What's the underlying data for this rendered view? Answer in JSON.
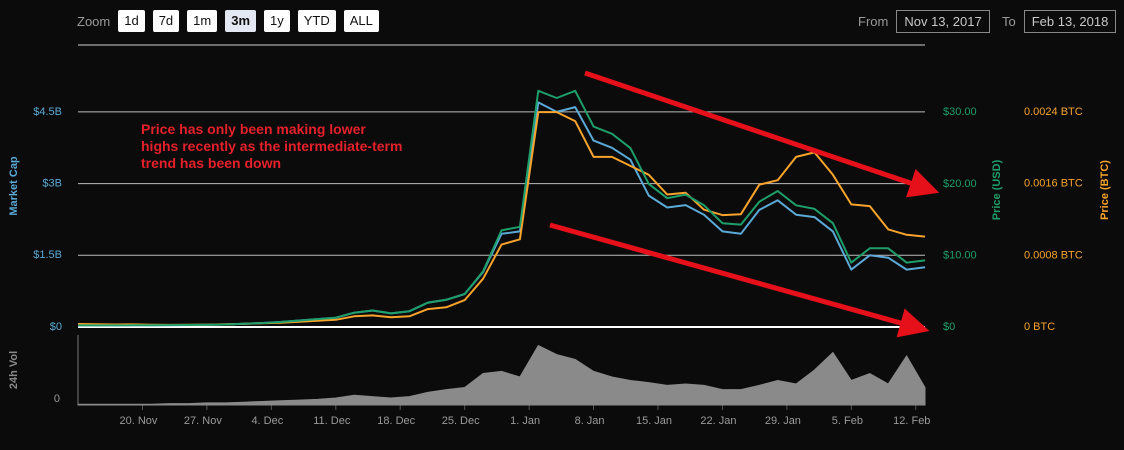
{
  "controls": {
    "zoom_label": "Zoom",
    "zoom_options": [
      "1d",
      "7d",
      "1m",
      "3m",
      "1y",
      "YTD",
      "ALL"
    ],
    "zoom_selected": 3,
    "from_label": "From",
    "from": "Nov 13, 2017",
    "to_label": "To",
    "to": "Feb 13, 2018"
  },
  "chart_data": {
    "type": "line",
    "annotation": "Price has only been making lower highs recently as the intermediate-term trend has been down",
    "x": [
      "2017-11-13",
      "2017-11-15",
      "2017-11-17",
      "2017-11-19",
      "2017-11-21",
      "2017-11-23",
      "2017-11-25",
      "2017-11-27",
      "2017-11-29",
      "2017-12-01",
      "2017-12-03",
      "2017-12-05",
      "2017-12-07",
      "2017-12-09",
      "2017-12-11",
      "2017-12-13",
      "2017-12-15",
      "2017-12-17",
      "2017-12-19",
      "2017-12-21",
      "2017-12-23",
      "2017-12-25",
      "2017-12-27",
      "2017-12-29",
      "2017-12-31",
      "2018-01-02",
      "2018-01-04",
      "2018-01-06",
      "2018-01-08",
      "2018-01-10",
      "2018-01-12",
      "2018-01-14",
      "2018-01-16",
      "2018-01-18",
      "2018-01-20",
      "2018-01-22",
      "2018-01-24",
      "2018-01-26",
      "2018-01-28",
      "2018-01-30",
      "2018-02-01",
      "2018-02-03",
      "2018-02-05",
      "2018-02-07",
      "2018-02-09",
      "2018-02-11",
      "2018-02-13"
    ],
    "xlim": [
      "2017-11-13",
      "2018-02-13"
    ],
    "xticks": [
      {
        "value": "2017-11-20",
        "label": "20. Nov"
      },
      {
        "value": "2017-11-27",
        "label": "27. Nov"
      },
      {
        "value": "2017-12-04",
        "label": "4. Dec"
      },
      {
        "value": "2017-12-11",
        "label": "11. Dec"
      },
      {
        "value": "2017-12-18",
        "label": "18. Dec"
      },
      {
        "value": "2017-12-25",
        "label": "25. Dec"
      },
      {
        "value": "2018-01-01",
        "label": "1. Jan"
      },
      {
        "value": "2018-01-08",
        "label": "8. Jan"
      },
      {
        "value": "2018-01-15",
        "label": "15. Jan"
      },
      {
        "value": "2018-01-22",
        "label": "22. Jan"
      },
      {
        "value": "2018-01-29",
        "label": "29. Jan"
      },
      {
        "value": "2018-02-05",
        "label": "5. Feb"
      },
      {
        "value": "2018-02-12",
        "label": "12. Feb"
      }
    ],
    "ylim": [
      0,
      5900000000
    ],
    "yticks": [
      {
        "value": 0,
        "label": "$0"
      },
      {
        "value": 1500000000,
        "label": "$1.5B"
      },
      {
        "value": 3000000000,
        "label": "$3B"
      },
      {
        "value": 4500000000,
        "label": "$4.5B"
      }
    ],
    "y2lim": [
      0,
      39.4
    ],
    "y2ticks": [
      {
        "value": 0,
        "label": "$0"
      },
      {
        "value": 10,
        "label": "$10.00"
      },
      {
        "value": 20,
        "label": "$20.00"
      },
      {
        "value": 30,
        "label": "$30.00"
      }
    ],
    "y3lim": [
      0,
      0.00315
    ],
    "y3ticks": [
      {
        "value": 0,
        "label": "0 BTC"
      },
      {
        "value": 0.0008,
        "label": "0.0008 BTC"
      },
      {
        "value": 0.0016,
        "label": "0.0016 BTC"
      },
      {
        "value": 0.0024,
        "label": "0.0024 BTC"
      }
    ],
    "vol_ylim": [
      0,
      100
    ],
    "vol_yticks": [
      0
    ],
    "grid": true,
    "series": [
      {
        "name": "Market Cap",
        "color": "#5aa9d6",
        "axis": "y",
        "values": [
          33000000,
          33000000,
          35000000,
          36000000,
          38000000,
          39000000,
          42000000,
          45000000,
          53000000,
          68000000,
          83000000,
          105000000,
          135000000,
          165000000,
          195000000,
          300000000,
          345000000,
          285000000,
          330000000,
          510000000,
          570000000,
          690000000,
          1150000000,
          1950000000,
          2000000000,
          4700000000,
          4500000000,
          4600000000,
          3900000000,
          3750000000,
          3500000000,
          2750000000,
          2500000000,
          2550000000,
          2350000000,
          2000000000,
          1950000000,
          2450000000,
          2650000000,
          2350000000,
          2300000000,
          2000000000,
          1200000000,
          1500000000,
          1450000000,
          1200000000,
          1250000000
        ]
      },
      {
        "name": "Price (BTC)",
        "color": "#f7a32c",
        "axis": "y3",
        "values": [
          3.4e-05,
          3e-05,
          2.8e-05,
          2.9e-05,
          2.5e-05,
          2.4e-05,
          2.5e-05,
          2.6e-05,
          3e-05,
          3.5e-05,
          4.2e-05,
          4.8e-05,
          5.8e-05,
          7e-05,
          8e-05,
          0.00012,
          0.00013,
          0.00011,
          0.00012,
          0.0002,
          0.00022,
          0.0003,
          0.00054,
          0.00092,
          0.00098,
          0.0024,
          0.0024,
          0.0023,
          0.0019,
          0.0019,
          0.0018,
          0.0017,
          0.00148,
          0.0015,
          0.00131,
          0.00125,
          0.00126,
          0.00159,
          0.00164,
          0.0019,
          0.00195,
          0.0017,
          0.00137,
          0.00135,
          0.00109,
          0.00103,
          0.00101
        ]
      },
      {
        "name": "Price (USD)",
        "color": "#1e9e6a",
        "axis": "y2",
        "values": [
          0.22,
          0.22,
          0.23,
          0.24,
          0.25,
          0.26,
          0.28,
          0.3,
          0.35,
          0.45,
          0.55,
          0.7,
          0.9,
          1.1,
          1.3,
          2,
          2.3,
          1.9,
          2.2,
          3.4,
          3.8,
          4.6,
          7.8,
          13.5,
          14,
          33,
          32,
          33,
          28,
          27,
          25,
          20,
          18,
          18.5,
          17,
          14.5,
          14.3,
          17.5,
          19,
          17,
          16.5,
          14.5,
          9,
          11,
          11,
          9,
          9.3
        ]
      },
      {
        "name": "24h Vol",
        "color": "#8a8a8a",
        "axis": "vol",
        "type": "area",
        "values": [
          1,
          1,
          1,
          1,
          1,
          2,
          2,
          3,
          3,
          4,
          5,
          6,
          7,
          8,
          10,
          14,
          12,
          10,
          12,
          18,
          22,
          25,
          45,
          48,
          40,
          85,
          72,
          65,
          48,
          40,
          35,
          32,
          28,
          30,
          28,
          22,
          22,
          28,
          35,
          30,
          50,
          75,
          35,
          45,
          30,
          70,
          25
        ]
      }
    ]
  }
}
